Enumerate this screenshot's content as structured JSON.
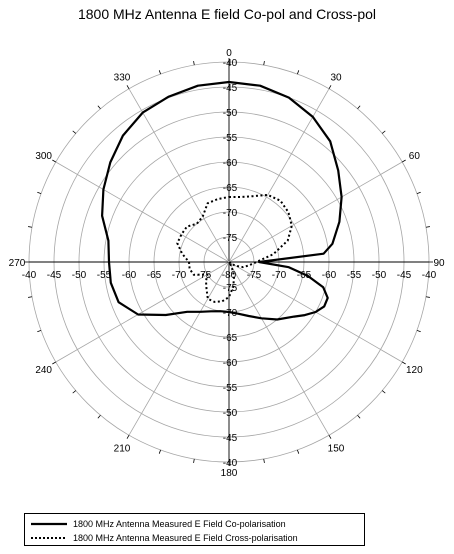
{
  "chart_data": {
    "type": "polar-line",
    "title": "1800 MHz Antenna E field Co-pol and Cross-pol",
    "r_axis": {
      "range": [
        -80,
        -40
      ],
      "step": 5,
      "tick_labels": [
        "-80",
        "-75",
        "-70",
        "-65",
        "-60",
        "-55",
        "-50",
        "-45",
        "-40"
      ]
    },
    "angle_axis": {
      "direction": "clockwise",
      "zero": "top",
      "step_degrees": 30,
      "tick_labels": [
        "0",
        "30",
        "60",
        "90",
        "120",
        "150",
        "180",
        "210",
        "240",
        "270",
        "300",
        "330"
      ]
    },
    "grid": true,
    "legend_position": "bottom-left",
    "series": [
      {
        "name": "1800 MHz Antenna Measured E Field Co-polarisation",
        "style": "solid",
        "angles": [
          0,
          10,
          20,
          30,
          40,
          50,
          60,
          70,
          80,
          85,
          90,
          95,
          100,
          105,
          110,
          115,
          120,
          125,
          130,
          140,
          150,
          160,
          170,
          180,
          190,
          200,
          210,
          220,
          230,
          240,
          250,
          260,
          270,
          280,
          290,
          300,
          310,
          320,
          330,
          340,
          350,
          360
        ],
        "values": [
          -44,
          -44.2,
          -45,
          -46.5,
          -48.5,
          -51.5,
          -54,
          -56.5,
          -59,
          -61,
          -74,
          -68,
          -64,
          -60.5,
          -59,
          -59,
          -60,
          -61.5,
          -63,
          -65,
          -67,
          -68.5,
          -69.5,
          -70,
          -70,
          -69.5,
          -68.5,
          -67,
          -63.5,
          -59,
          -56.5,
          -56,
          -56,
          -55.5,
          -53,
          -51,
          -49,
          -47,
          -45.5,
          -44.8,
          -44.2,
          -44
        ]
      },
      {
        "name": "1800 MHz Antenna Measured E Field Cross-polarisation",
        "style": "dotted",
        "angles": [
          0,
          10,
          20,
          30,
          40,
          50,
          60,
          70,
          80,
          90,
          100,
          110,
          120,
          130,
          140,
          150,
          160,
          170,
          180,
          190,
          200,
          210,
          220,
          230,
          240,
          250,
          260,
          270,
          280,
          290,
          300,
          310,
          320,
          330,
          340,
          350,
          360
        ],
        "values": [
          -67,
          -66.8,
          -66,
          -64.5,
          -64,
          -64.5,
          -65.5,
          -67.5,
          -71,
          -74.5,
          -76,
          -77,
          -78.5,
          -79.5,
          -80,
          -79,
          -77,
          -75,
          -73,
          -72,
          -71.5,
          -71.5,
          -73,
          -74,
          -75,
          -72.5,
          -72,
          -72,
          -70.5,
          -69,
          -69,
          -69,
          -70,
          -69.5,
          -67.5,
          -67.2,
          -67
        ]
      }
    ]
  }
}
